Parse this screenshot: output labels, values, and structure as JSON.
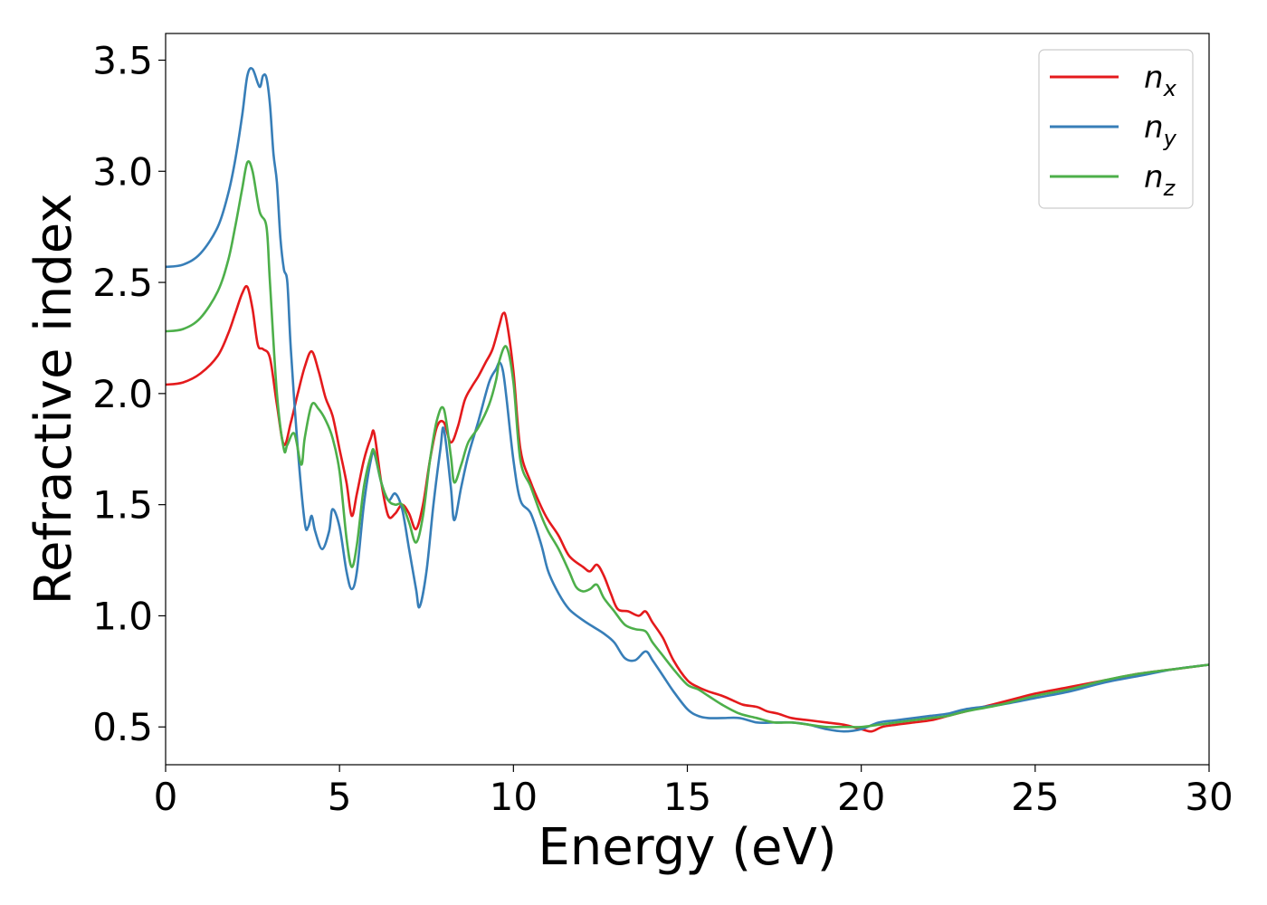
{
  "chart_data": {
    "type": "line",
    "title": "",
    "xlabel": "Energy (eV)",
    "ylabel": "Refractive index",
    "xlim": [
      0,
      30
    ],
    "ylim": [
      0.33,
      3.62
    ],
    "xticks": [
      0,
      5,
      10,
      15,
      20,
      25,
      30
    ],
    "xtick_labels": [
      "0",
      "5",
      "10",
      "15",
      "20",
      "25",
      "30"
    ],
    "yticks": [
      0.5,
      1.0,
      1.5,
      2.0,
      2.5,
      3.0,
      3.5
    ],
    "ytick_labels": [
      "0.5",
      "1.0",
      "1.5",
      "2.0",
      "2.5",
      "3.0",
      "3.5"
    ],
    "grid": false,
    "legend_position": "top-right",
    "series": [
      {
        "name": "n_x",
        "legend_base": "n",
        "legend_sub": "x",
        "color": "#e41a1c",
        "x": [
          0,
          0.5,
          1.0,
          1.5,
          1.8,
          2.0,
          2.2,
          2.35,
          2.5,
          2.65,
          2.8,
          3.0,
          3.2,
          3.4,
          3.6,
          3.8,
          4.0,
          4.2,
          4.4,
          4.6,
          4.8,
          5.0,
          5.2,
          5.35,
          5.5,
          5.7,
          5.9,
          6.0,
          6.2,
          6.4,
          6.6,
          6.8,
          7.0,
          7.2,
          7.4,
          7.6,
          7.8,
          8.0,
          8.2,
          8.4,
          8.6,
          8.8,
          9.0,
          9.2,
          9.4,
          9.6,
          9.7,
          9.8,
          10.0,
          10.2,
          10.5,
          10.8,
          11.0,
          11.3,
          11.6,
          12.0,
          12.2,
          12.4,
          12.6,
          12.8,
          13.0,
          13.3,
          13.6,
          13.8,
          14.0,
          14.3,
          14.6,
          15.0,
          15.3,
          15.6,
          16.0,
          16.3,
          16.6,
          17.0,
          17.3,
          17.6,
          18.0,
          18.5,
          19.0,
          19.5,
          20.0,
          20.3,
          20.6,
          21.0,
          21.5,
          22.0,
          22.5,
          23.0,
          23.5,
          24.0,
          24.5,
          25.0,
          26.0,
          27.0,
          28.0,
          29.0,
          30.0
        ],
        "values": [
          2.04,
          2.05,
          2.09,
          2.17,
          2.27,
          2.36,
          2.45,
          2.48,
          2.38,
          2.22,
          2.2,
          2.16,
          1.95,
          1.77,
          1.87,
          2.0,
          2.12,
          2.19,
          2.1,
          1.98,
          1.9,
          1.75,
          1.6,
          1.45,
          1.55,
          1.7,
          1.8,
          1.82,
          1.6,
          1.45,
          1.46,
          1.5,
          1.46,
          1.39,
          1.5,
          1.7,
          1.85,
          1.87,
          1.78,
          1.85,
          1.97,
          2.03,
          2.08,
          2.14,
          2.2,
          2.31,
          2.36,
          2.33,
          2.1,
          1.75,
          1.6,
          1.49,
          1.43,
          1.36,
          1.27,
          1.22,
          1.2,
          1.23,
          1.18,
          1.1,
          1.03,
          1.02,
          1.0,
          1.02,
          0.97,
          0.9,
          0.8,
          0.71,
          0.68,
          0.66,
          0.64,
          0.62,
          0.6,
          0.59,
          0.57,
          0.56,
          0.54,
          0.53,
          0.52,
          0.51,
          0.49,
          0.48,
          0.5,
          0.51,
          0.52,
          0.53,
          0.55,
          0.57,
          0.59,
          0.61,
          0.63,
          0.65,
          0.68,
          0.71,
          0.74,
          0.76,
          0.78
        ]
      },
      {
        "name": "n_y",
        "legend_base": "n",
        "legend_sub": "y",
        "color": "#377eb8",
        "x": [
          0,
          0.5,
          1.0,
          1.5,
          1.8,
          2.0,
          2.2,
          2.35,
          2.5,
          2.7,
          2.8,
          2.9,
          3.0,
          3.1,
          3.2,
          3.3,
          3.4,
          3.5,
          3.6,
          3.8,
          4.0,
          4.1,
          4.2,
          4.3,
          4.5,
          4.7,
          4.8,
          5.0,
          5.2,
          5.35,
          5.5,
          5.7,
          5.9,
          6.0,
          6.2,
          6.4,
          6.6,
          6.8,
          7.0,
          7.2,
          7.3,
          7.5,
          7.7,
          7.9,
          8.0,
          8.2,
          8.3,
          8.5,
          8.7,
          9.0,
          9.3,
          9.5,
          9.6,
          9.7,
          9.8,
          10.0,
          10.2,
          10.5,
          10.8,
          11.0,
          11.3,
          11.6,
          12.0,
          12.3,
          12.6,
          12.9,
          13.2,
          13.5,
          13.8,
          14.0,
          14.3,
          14.6,
          15.0,
          15.3,
          15.6,
          16.0,
          16.5,
          17.0,
          17.5,
          18.0,
          18.5,
          19.0,
          19.5,
          20.0,
          20.5,
          21.0,
          21.5,
          22.0,
          22.5,
          23.0,
          24.0,
          25.0,
          26.0,
          27.0,
          28.0,
          29.0,
          30.0
        ],
        "values": [
          2.57,
          2.58,
          2.63,
          2.75,
          2.9,
          3.05,
          3.25,
          3.43,
          3.46,
          3.38,
          3.43,
          3.42,
          3.3,
          3.08,
          2.95,
          2.7,
          2.56,
          2.5,
          2.2,
          1.75,
          1.42,
          1.4,
          1.45,
          1.38,
          1.3,
          1.38,
          1.48,
          1.4,
          1.2,
          1.12,
          1.2,
          1.5,
          1.7,
          1.73,
          1.6,
          1.52,
          1.55,
          1.48,
          1.3,
          1.12,
          1.04,
          1.2,
          1.5,
          1.75,
          1.84,
          1.58,
          1.43,
          1.58,
          1.72,
          1.88,
          2.05,
          2.11,
          2.14,
          2.1,
          1.98,
          1.7,
          1.52,
          1.46,
          1.32,
          1.2,
          1.1,
          1.03,
          0.98,
          0.95,
          0.92,
          0.88,
          0.81,
          0.8,
          0.84,
          0.8,
          0.73,
          0.66,
          0.58,
          0.55,
          0.54,
          0.54,
          0.54,
          0.52,
          0.52,
          0.52,
          0.51,
          0.49,
          0.48,
          0.49,
          0.52,
          0.53,
          0.54,
          0.55,
          0.56,
          0.58,
          0.6,
          0.63,
          0.66,
          0.7,
          0.73,
          0.76,
          0.78
        ]
      },
      {
        "name": "n_z",
        "legend_base": "n",
        "legend_sub": "z",
        "color": "#4daf4a",
        "x": [
          0,
          0.5,
          1.0,
          1.5,
          1.8,
          2.0,
          2.2,
          2.35,
          2.5,
          2.7,
          2.9,
          3.0,
          3.2,
          3.4,
          3.5,
          3.7,
          3.9,
          4.0,
          4.2,
          4.4,
          4.6,
          4.8,
          5.0,
          5.2,
          5.35,
          5.5,
          5.7,
          5.9,
          6.0,
          6.2,
          6.4,
          6.6,
          6.8,
          7.0,
          7.2,
          7.4,
          7.6,
          7.8,
          8.0,
          8.2,
          8.3,
          8.5,
          8.7,
          9.0,
          9.3,
          9.5,
          9.6,
          9.8,
          10.0,
          10.2,
          10.5,
          10.8,
          11.0,
          11.3,
          11.6,
          11.8,
          12.0,
          12.2,
          12.4,
          12.6,
          12.9,
          13.2,
          13.5,
          13.8,
          14.0,
          14.3,
          14.6,
          15.0,
          15.3,
          15.6,
          16.0,
          16.5,
          17.0,
          17.5,
          18.0,
          18.5,
          19.0,
          19.5,
          20.0,
          20.5,
          21.0,
          21.5,
          22.0,
          22.5,
          23.0,
          24.0,
          25.0,
          26.0,
          27.0,
          28.0,
          29.0,
          30.0
        ],
        "values": [
          2.28,
          2.29,
          2.34,
          2.46,
          2.6,
          2.75,
          2.92,
          3.04,
          3.0,
          2.82,
          2.75,
          2.5,
          2.0,
          1.75,
          1.77,
          1.82,
          1.68,
          1.8,
          1.95,
          1.93,
          1.88,
          1.8,
          1.65,
          1.35,
          1.22,
          1.32,
          1.58,
          1.72,
          1.74,
          1.6,
          1.52,
          1.5,
          1.5,
          1.42,
          1.33,
          1.45,
          1.7,
          1.88,
          1.93,
          1.72,
          1.6,
          1.68,
          1.78,
          1.85,
          1.95,
          2.06,
          2.15,
          2.21,
          2.05,
          1.7,
          1.58,
          1.45,
          1.38,
          1.3,
          1.2,
          1.13,
          1.11,
          1.12,
          1.14,
          1.08,
          1.02,
          0.96,
          0.94,
          0.93,
          0.88,
          0.82,
          0.76,
          0.69,
          0.67,
          0.64,
          0.6,
          0.56,
          0.54,
          0.52,
          0.52,
          0.51,
          0.5,
          0.5,
          0.5,
          0.51,
          0.52,
          0.53,
          0.54,
          0.55,
          0.57,
          0.6,
          0.64,
          0.67,
          0.71,
          0.74,
          0.76,
          0.78
        ]
      }
    ]
  }
}
